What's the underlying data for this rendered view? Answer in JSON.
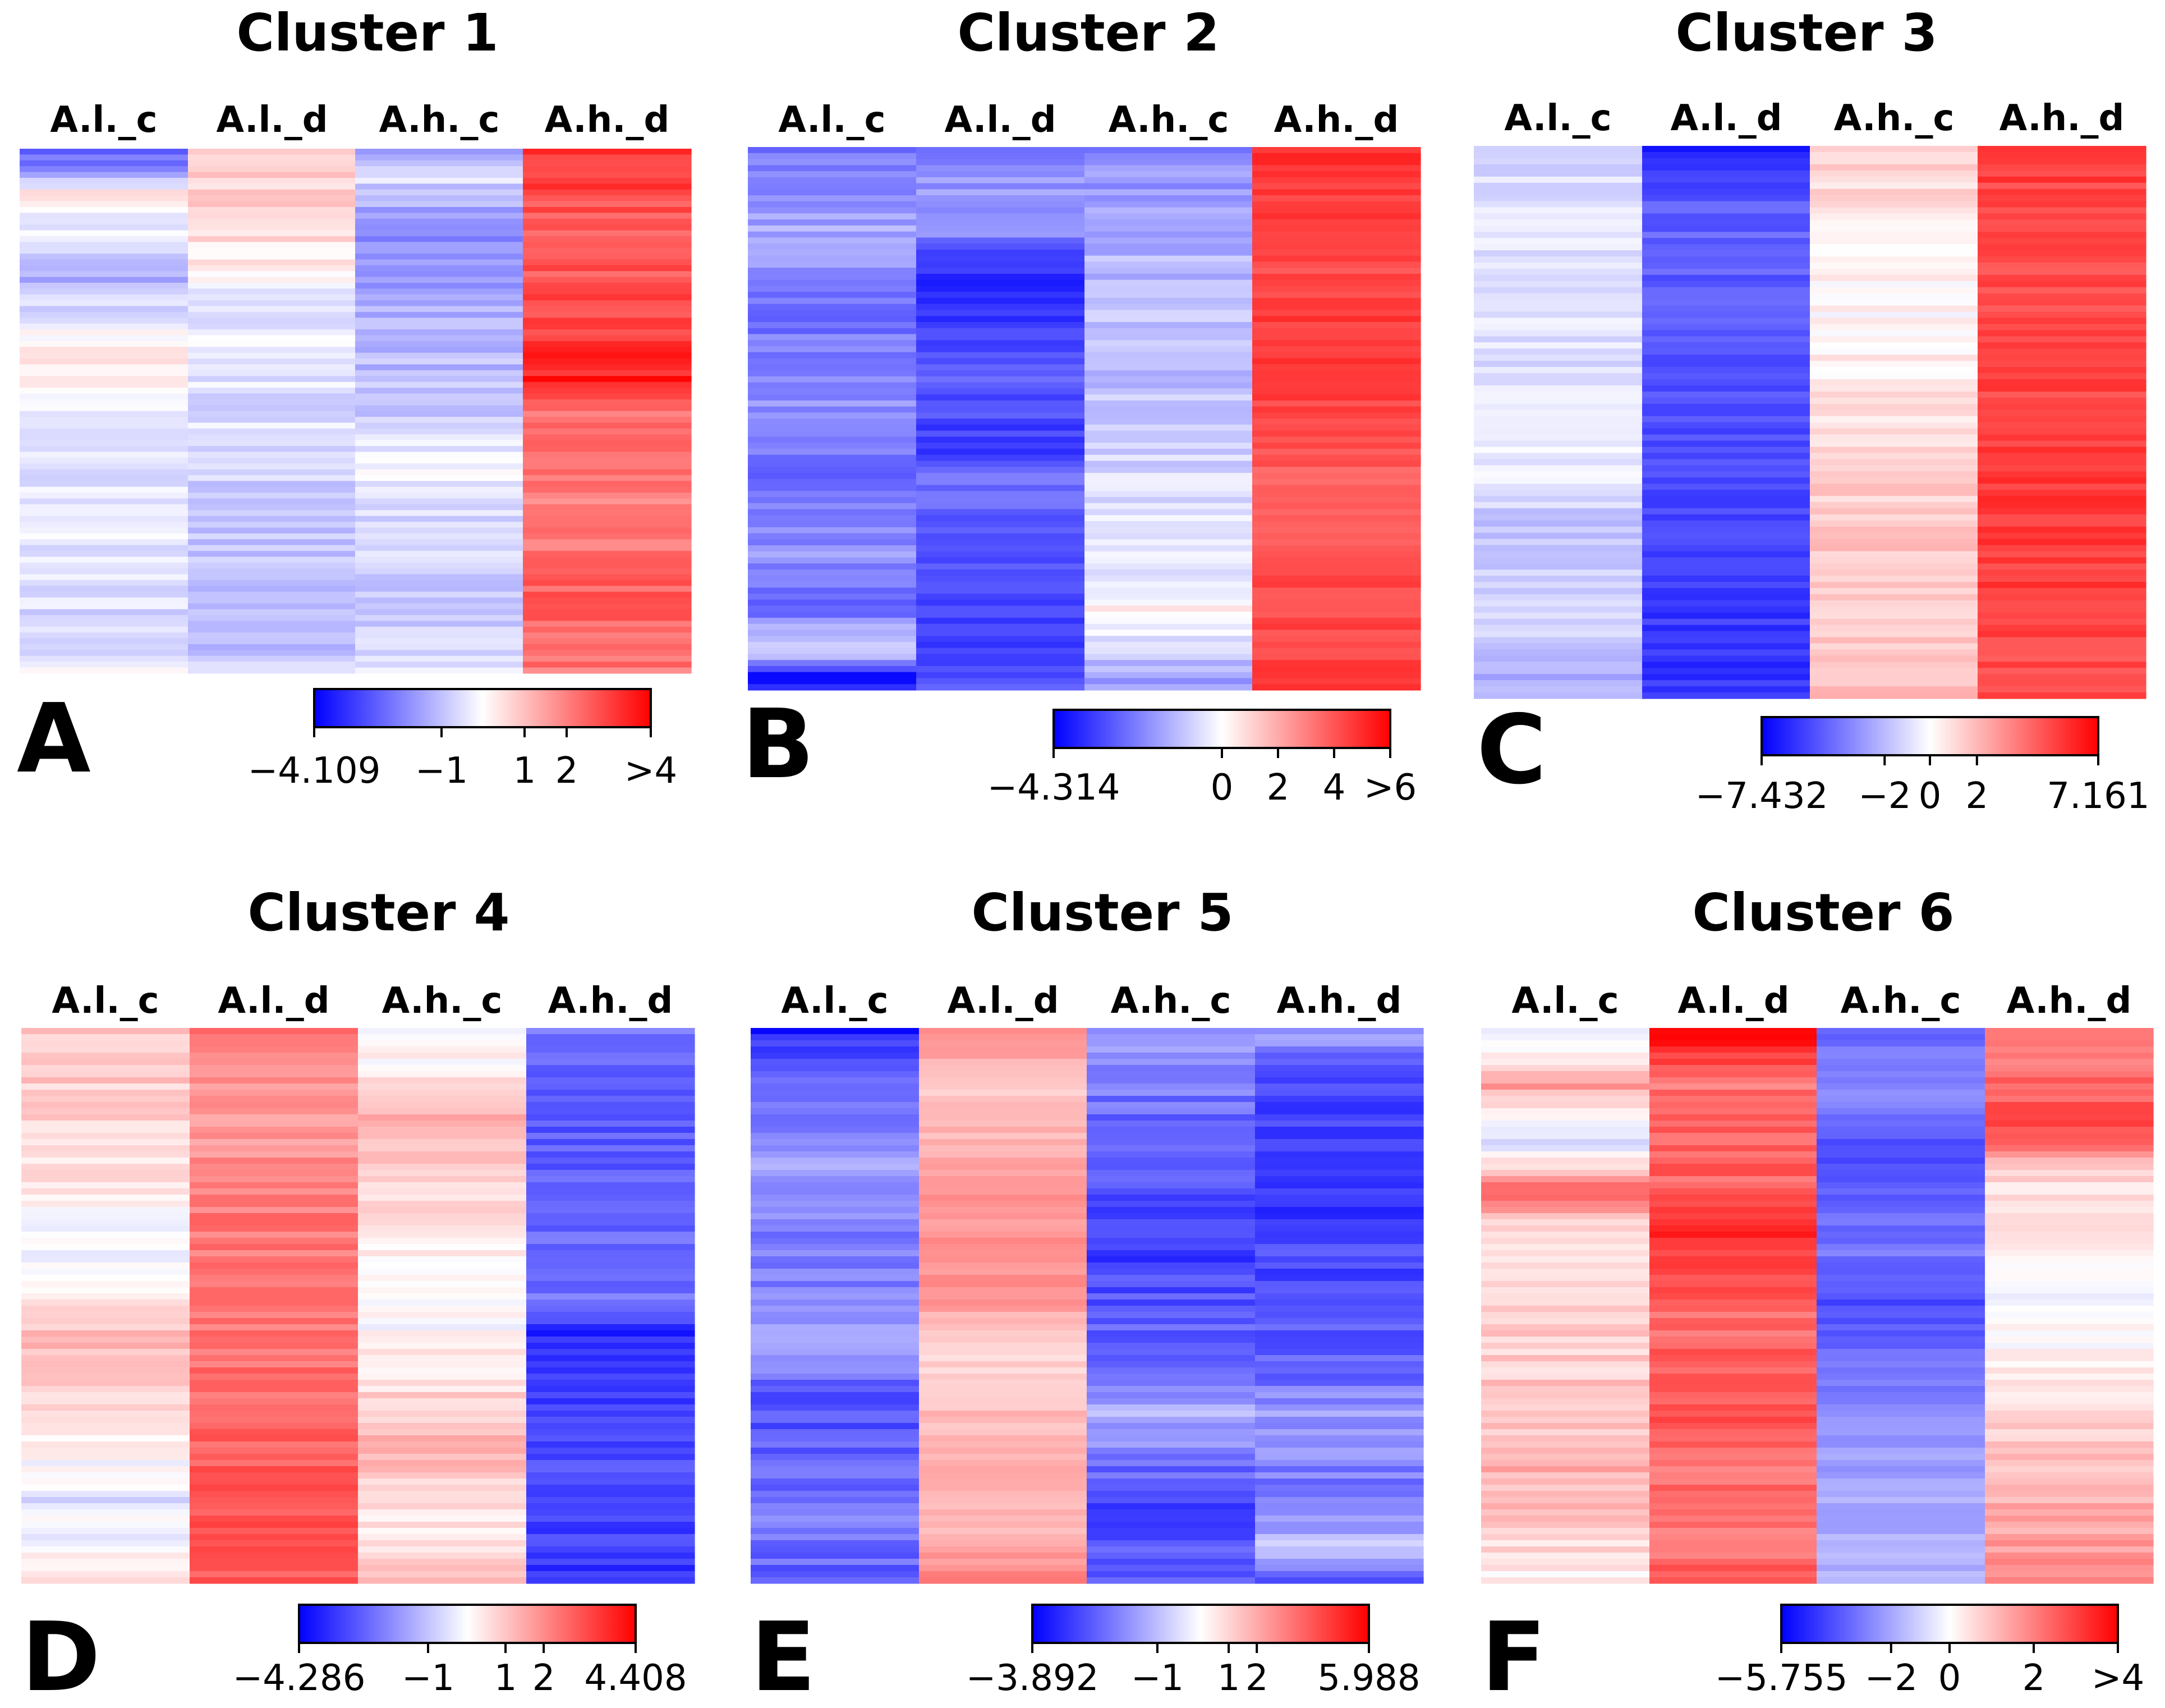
{
  "chart_data": [
    {
      "type": "heatmap",
      "panel_letter": "A",
      "title": "Cluster 1",
      "columns": [
        "A.l._c",
        "A.l._d",
        "A.h._c",
        "A.h._d"
      ],
      "column_profiles": [
        [
          [
            0,
            -2.8
          ],
          [
            0.03,
            -1.8
          ],
          [
            0.08,
            0.3
          ],
          [
            0.15,
            -0.3
          ],
          [
            0.25,
            -1.2
          ],
          [
            0.4,
            0.5
          ],
          [
            0.55,
            -0.6
          ],
          [
            0.7,
            -0.4
          ],
          [
            0.85,
            -0.6
          ],
          [
            1,
            -0.3
          ]
        ],
        [
          [
            0,
            0.7
          ],
          [
            0.1,
            0.8
          ],
          [
            0.3,
            -0.3
          ],
          [
            0.5,
            -0.5
          ],
          [
            0.7,
            -0.9
          ],
          [
            0.85,
            -1.0
          ],
          [
            1,
            -0.9
          ]
        ],
        [
          [
            0,
            -1.8
          ],
          [
            0.05,
            -0.5
          ],
          [
            0.15,
            -2.0
          ],
          [
            0.3,
            -1.3
          ],
          [
            0.5,
            -1.0
          ],
          [
            0.6,
            0.0
          ],
          [
            0.75,
            -0.7
          ],
          [
            0.9,
            -0.9
          ],
          [
            1,
            -0.6
          ]
        ],
        [
          [
            0,
            3.3
          ],
          [
            0.15,
            2.5
          ],
          [
            0.3,
            2.8
          ],
          [
            0.45,
            3.6
          ],
          [
            0.5,
            2.2
          ],
          [
            0.7,
            2.0
          ],
          [
            0.85,
            2.5
          ],
          [
            1,
            2.2
          ]
        ]
      ],
      "legend": {
        "min": -4.109,
        "max": 4,
        "tick_values": [
          -4.109,
          -1,
          1,
          2,
          4
        ],
        "tick_labels": [
          "−4.109",
          "−1",
          "1",
          "2",
          ">4"
        ]
      }
    },
    {
      "type": "heatmap",
      "panel_letter": "B",
      "title": "Cluster 2",
      "columns": [
        "A.l._c",
        "A.l._d",
        "A.h._c",
        "A.h._d"
      ],
      "column_profiles": [
        [
          [
            0,
            -2.2
          ],
          [
            0.15,
            -1.5
          ],
          [
            0.3,
            -2.4
          ],
          [
            0.5,
            -1.8
          ],
          [
            0.6,
            -2.6
          ],
          [
            0.75,
            -1.8
          ],
          [
            0.85,
            -2.7
          ],
          [
            0.93,
            -0.5
          ],
          [
            0.98,
            -3.9
          ],
          [
            1,
            -3.9
          ]
        ],
        [
          [
            0,
            -2.0
          ],
          [
            0.15,
            -1.5
          ],
          [
            0.2,
            -3.6
          ],
          [
            0.45,
            -2.8
          ],
          [
            0.55,
            -3.4
          ],
          [
            0.6,
            -2.2
          ],
          [
            0.8,
            -3.2
          ],
          [
            1,
            -3.0
          ]
        ],
        [
          [
            0,
            -2.0
          ],
          [
            0.2,
            -1.2
          ],
          [
            0.5,
            -1.0
          ],
          [
            0.7,
            -0.3
          ],
          [
            0.8,
            -0.8
          ],
          [
            0.85,
            0.3
          ],
          [
            0.95,
            -1.0
          ],
          [
            1,
            -1.8
          ]
        ],
        [
          [
            0,
            5.0
          ],
          [
            0.2,
            4.2
          ],
          [
            0.4,
            4.8
          ],
          [
            0.6,
            3.8
          ],
          [
            0.8,
            4.2
          ],
          [
            1,
            4.5
          ]
        ]
      ],
      "legend": {
        "min": -4.314,
        "max": 6,
        "tick_values": [
          -4.314,
          0,
          2,
          4,
          6
        ],
        "tick_labels": [
          "−4.314",
          "0",
          "2",
          "4",
          ">6"
        ]
      }
    },
    {
      "type": "heatmap",
      "panel_letter": "C",
      "title": "Cluster 3",
      "columns": [
        "A.l._c",
        "A.l._d",
        "A.h._c",
        "A.h._d"
      ],
      "column_profiles": [
        [
          [
            0,
            -1.2
          ],
          [
            0.2,
            -0.8
          ],
          [
            0.4,
            -0.9
          ],
          [
            0.55,
            -0.3
          ],
          [
            0.7,
            -1.8
          ],
          [
            0.85,
            -1.2
          ],
          [
            1,
            -2.5
          ]
        ],
        [
          [
            0,
            -6.8
          ],
          [
            0.1,
            -4.5
          ],
          [
            0.4,
            -5.0
          ],
          [
            0.7,
            -5.5
          ],
          [
            1,
            -6.0
          ]
        ],
        [
          [
            0,
            1.5
          ],
          [
            0.15,
            0.5
          ],
          [
            0.3,
            0.2
          ],
          [
            0.5,
            0.8
          ],
          [
            0.7,
            1.6
          ],
          [
            0.85,
            1.3
          ],
          [
            1,
            1.8
          ]
        ],
        [
          [
            0,
            5.8
          ],
          [
            0.1,
            5.0
          ],
          [
            0.5,
            5.2
          ],
          [
            0.7,
            5.6
          ],
          [
            1,
            5.0
          ]
        ]
      ],
      "legend": {
        "min": -7.432,
        "max": 7.161,
        "tick_values": [
          -7.432,
          -2,
          0,
          2,
          7.161
        ],
        "tick_labels": [
          "−7.432",
          "−2",
          "0",
          "2",
          "7.161"
        ]
      }
    },
    {
      "type": "heatmap",
      "panel_letter": "D",
      "title": "Cluster 4",
      "columns": [
        "A.l._c",
        "A.l._d",
        "A.h._c",
        "A.h._d"
      ],
      "column_profiles": [
        [
          [
            0,
            1.0
          ],
          [
            0.2,
            0.8
          ],
          [
            0.4,
            -0.3
          ],
          [
            0.55,
            1.2
          ],
          [
            0.75,
            0.4
          ],
          [
            0.85,
            -0.5
          ],
          [
            1,
            0.4
          ]
        ],
        [
          [
            0,
            2.4
          ],
          [
            0.15,
            1.6
          ],
          [
            0.3,
            2.3
          ],
          [
            0.55,
            2.4
          ],
          [
            0.75,
            2.7
          ],
          [
            0.85,
            3.1
          ],
          [
            1,
            2.9
          ]
        ],
        [
          [
            0,
            -0.5
          ],
          [
            0.15,
            1.5
          ],
          [
            0.35,
            0.5
          ],
          [
            0.55,
            0.0
          ],
          [
            0.75,
            1.3
          ],
          [
            0.9,
            0.3
          ],
          [
            1,
            1.0
          ]
        ],
        [
          [
            0,
            -2.3
          ],
          [
            0.2,
            -2.8
          ],
          [
            0.5,
            -2.4
          ],
          [
            0.55,
            -3.6
          ],
          [
            0.75,
            -3.0
          ],
          [
            0.95,
            -3.3
          ],
          [
            1,
            -3.6
          ]
        ]
      ],
      "legend": {
        "min": -4.286,
        "max": 4.408,
        "tick_values": [
          -4.286,
          -1,
          1,
          2,
          4.408
        ],
        "tick_labels": [
          "−4.286",
          "−1",
          "1",
          "2",
          "4.408"
        ]
      }
    },
    {
      "type": "heatmap",
      "panel_letter": "E",
      "title": "Cluster 5",
      "columns": [
        "A.l._c",
        "A.l._d",
        "A.h._c",
        "A.h._d"
      ],
      "column_profiles": [
        [
          [
            0,
            -3.5
          ],
          [
            0.05,
            -2.5
          ],
          [
            0.25,
            -1.5
          ],
          [
            0.4,
            -2.0
          ],
          [
            0.6,
            -1.5
          ],
          [
            0.65,
            -2.8
          ],
          [
            0.9,
            -2.0
          ],
          [
            1,
            -2.5
          ]
        ],
        [
          [
            0,
            3.0
          ],
          [
            0.1,
            1.2
          ],
          [
            0.3,
            2.5
          ],
          [
            0.5,
            2.5
          ],
          [
            0.55,
            0.8
          ],
          [
            0.75,
            1.8
          ],
          [
            0.9,
            1.5
          ],
          [
            1,
            3.0
          ]
        ],
        [
          [
            0,
            -1.5
          ],
          [
            0.2,
            -2.5
          ],
          [
            0.4,
            -3.0
          ],
          [
            0.6,
            -2.2
          ],
          [
            0.7,
            -1.2
          ],
          [
            0.85,
            -2.8
          ],
          [
            1,
            -2.5
          ]
        ],
        [
          [
            0,
            -1.5
          ],
          [
            0.1,
            -2.8
          ],
          [
            0.3,
            -3.0
          ],
          [
            0.6,
            -2.5
          ],
          [
            0.7,
            -1.5
          ],
          [
            0.85,
            -2.2
          ],
          [
            0.95,
            -0.8
          ],
          [
            1,
            -3.0
          ]
        ]
      ],
      "legend": {
        "min": -3.892,
        "max": 5.988,
        "tick_values": [
          -3.892,
          -1,
          1,
          2,
          5.988
        ],
        "tick_labels": [
          "−3.892",
          "−1",
          "1",
          "2",
          "5.988"
        ]
      }
    },
    {
      "type": "heatmap",
      "panel_letter": "F",
      "title": "Cluster 6",
      "columns": [
        "A.l._c",
        "A.l._d",
        "A.h._c",
        "A.h._d"
      ],
      "column_profiles": [
        [
          [
            0,
            -0.5
          ],
          [
            0.1,
            1.5
          ],
          [
            0.2,
            -0.8
          ],
          [
            0.3,
            2.5
          ],
          [
            0.35,
            0.5
          ],
          [
            0.6,
            0.8
          ],
          [
            0.8,
            1.2
          ],
          [
            1,
            0.3
          ]
        ],
        [
          [
            0,
            3.8
          ],
          [
            0.1,
            2.2
          ],
          [
            0.3,
            2.5
          ],
          [
            0.35,
            3.5
          ],
          [
            0.5,
            2.3
          ],
          [
            0.7,
            2.6
          ],
          [
            0.9,
            2.0
          ],
          [
            1,
            2.5
          ]
        ],
        [
          [
            0,
            -3.5
          ],
          [
            0.1,
            -2.5
          ],
          [
            0.22,
            -4.2
          ],
          [
            0.4,
            -3.0
          ],
          [
            0.5,
            -4.0
          ],
          [
            0.7,
            -2.5
          ],
          [
            0.85,
            -2.0
          ],
          [
            1,
            -1.8
          ]
        ],
        [
          [
            0,
            2.0
          ],
          [
            0.2,
            2.8
          ],
          [
            0.25,
            0.8
          ],
          [
            0.5,
            -0.2
          ],
          [
            0.7,
            0.8
          ],
          [
            0.85,
            1.2
          ],
          [
            1,
            1.8
          ]
        ]
      ],
      "legend": {
        "min": -5.755,
        "max": 4,
        "tick_values": [
          -5.755,
          -2,
          0,
          2,
          4
        ],
        "tick_labels": [
          "−5.755",
          "−2",
          "0",
          "2",
          ">4"
        ]
      }
    }
  ]
}
